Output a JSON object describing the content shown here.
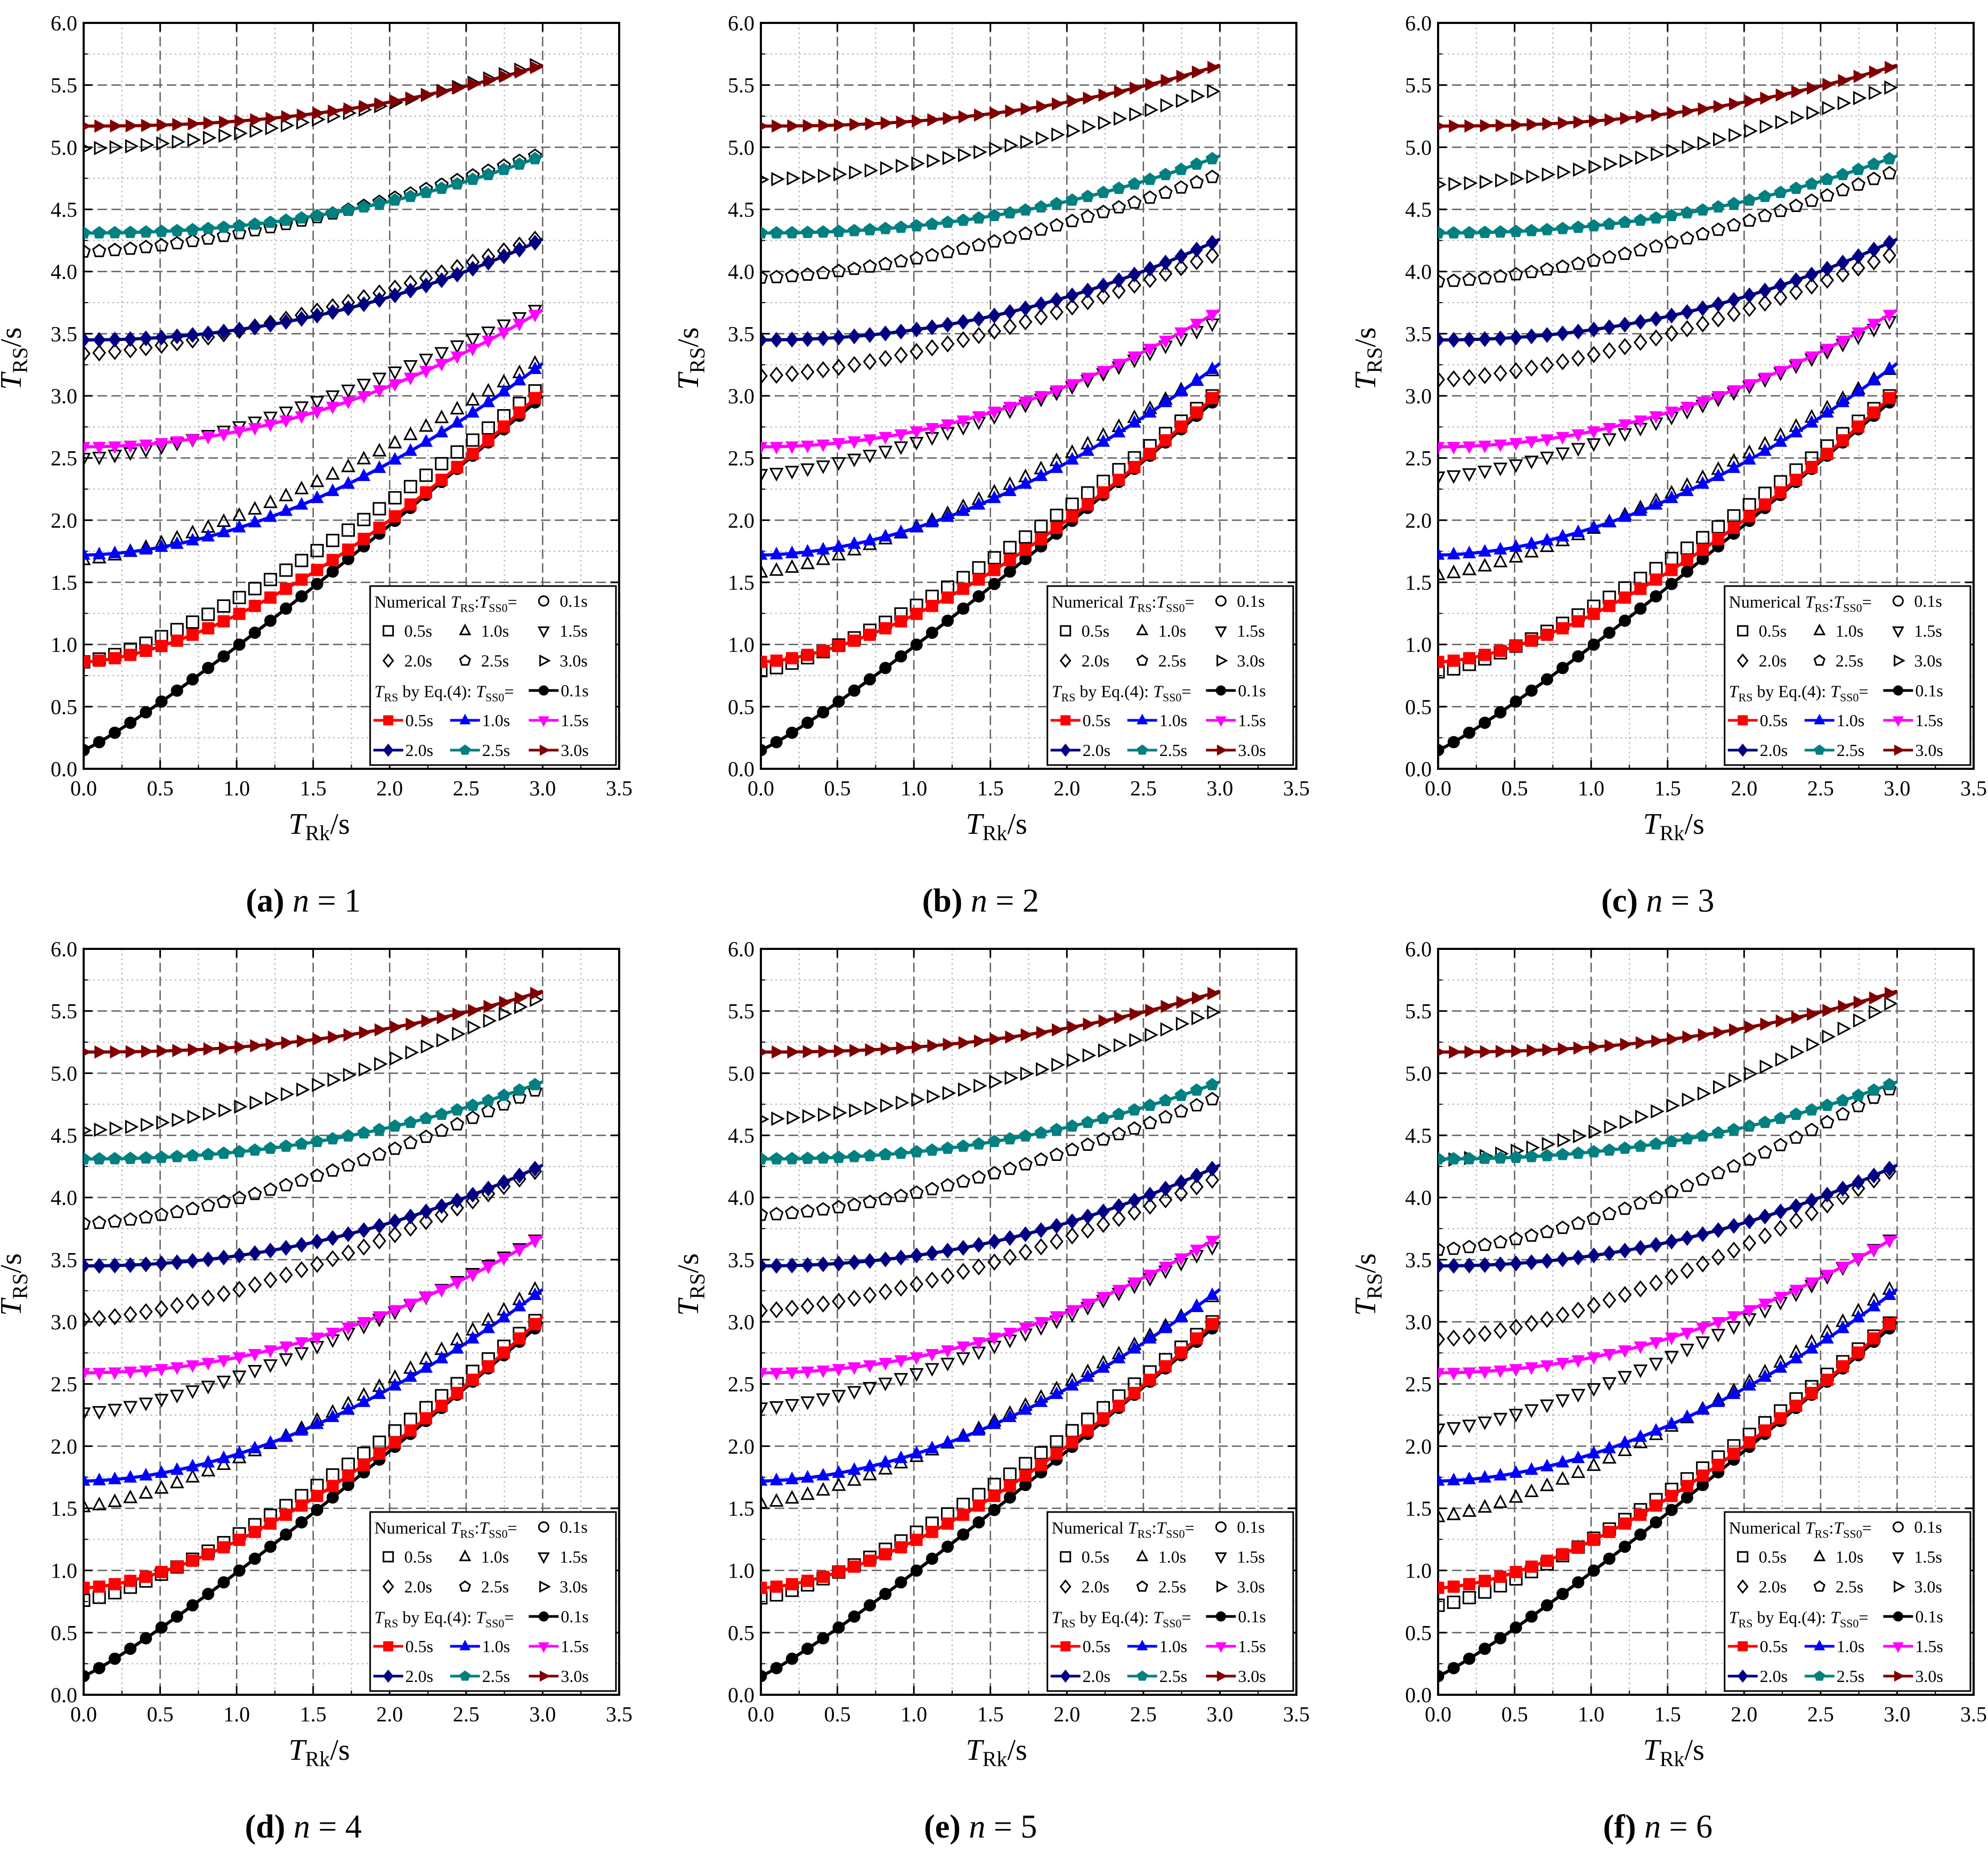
{
  "figure": {
    "x_axis_label": "T",
    "x_axis_label_sub": "Rk",
    "x_axis_label_unit": "/s",
    "y_axis_label": "T",
    "y_axis_label_sub": "RS",
    "y_axis_label_unit": "/s",
    "x_ticks": [
      "0.0",
      "0.5",
      "1.0",
      "1.5",
      "2.0",
      "2.5",
      "3.0",
      "3.5"
    ],
    "y_ticks": [
      "0.0",
      "0.5",
      "1.0",
      "1.5",
      "2.0",
      "2.5",
      "3.0",
      "3.5",
      "4.0",
      "4.5",
      "5.0",
      "5.5",
      "6.0"
    ],
    "legend": {
      "numerical_label": "Numerical ",
      "numerical_T": "T",
      "numerical_sub": "RS",
      "numerical_mid": ":",
      "numerical_T2": "T",
      "numerical_sub2": "SS0",
      "numerical_eq": "=",
      "eq4_T": "T",
      "eq4_sub": "RS",
      "eq4_text": " by Eq.(4): ",
      "eq4_T2": "T",
      "eq4_sub2": "SS0",
      "eq4_eq": "=",
      "entries": [
        "0.1s",
        "0.5s",
        "1.0s",
        "1.5s",
        "2.0s",
        "2.5s",
        "3.0s"
      ]
    },
    "colors": {
      "0.1s": "#000000",
      "0.5s": "#ff0000",
      "1.0s": "#0000ff",
      "1.5s": "#ff00ff",
      "2.0s": "#000080",
      "2.5s": "#008080",
      "3.0s": "#800000"
    },
    "markers": {
      "numerical": [
        "circle",
        "square",
        "triangle-up",
        "triangle-down",
        "diamond",
        "pentagon",
        "triangle-right"
      ],
      "equation": [
        "circle",
        "square",
        "triangle-up",
        "triangle-down",
        "diamond",
        "pentagon",
        "triangle-right"
      ]
    }
  },
  "chart_data": [
    {
      "type": "line",
      "caption_letter": "(a)",
      "caption_n": "n",
      "caption_eq": " = 1",
      "xlim": [
        0,
        3.5
      ],
      "ylim": [
        0,
        6
      ],
      "x_range": [
        0,
        2.95
      ],
      "equation_series": [
        {
          "name": "0.1s",
          "start": 0.15,
          "end": 3.0
        },
        {
          "name": "0.5s",
          "start": 0.86,
          "end": 3.04
        },
        {
          "name": "1.0s",
          "start": 1.72,
          "end": 3.26
        },
        {
          "name": "1.5s",
          "start": 2.59,
          "end": 3.69
        },
        {
          "name": "2.0s",
          "start": 3.45,
          "end": 4.26
        },
        {
          "name": "2.5s",
          "start": 4.31,
          "end": 4.93
        },
        {
          "name": "3.0s",
          "start": 5.17,
          "end": 5.66
        }
      ],
      "numerical_series": [
        {
          "name": "0.5s",
          "start": 0.86,
          "end": 3.04
        },
        {
          "name": "1.0s",
          "start": 1.68,
          "end": 3.26
        },
        {
          "name": "1.5s",
          "start": 2.5,
          "end": 3.69
        },
        {
          "name": "2.0s",
          "start": 3.34,
          "end": 4.26
        },
        {
          "name": "2.5s",
          "start": 4.16,
          "end": 4.93
        },
        {
          "name": "3.0s",
          "start": 4.99,
          "end": 5.66
        }
      ]
    },
    {
      "type": "line",
      "caption_letter": "(b)",
      "caption_n": "n",
      "caption_eq": " = 2",
      "xlim": [
        0,
        3.5
      ],
      "ylim": [
        0,
        6
      ],
      "x_range": [
        0,
        2.95
      ],
      "equation_series": [
        {
          "name": "0.1s",
          "start": 0.15,
          "end": 3.0
        },
        {
          "name": "0.5s",
          "start": 0.86,
          "end": 3.04
        },
        {
          "name": "1.0s",
          "start": 1.72,
          "end": 3.26
        },
        {
          "name": "1.5s",
          "start": 2.59,
          "end": 3.69
        },
        {
          "name": "2.0s",
          "start": 3.45,
          "end": 4.26
        },
        {
          "name": "2.5s",
          "start": 4.31,
          "end": 4.93
        },
        {
          "name": "3.0s",
          "start": 5.17,
          "end": 5.66
        }
      ],
      "numerical_series": [
        {
          "name": "0.5s",
          "start": 0.79,
          "end": 3.0
        },
        {
          "name": "1.0s",
          "start": 1.58,
          "end": 3.2
        },
        {
          "name": "1.5s",
          "start": 2.37,
          "end": 3.58
        },
        {
          "name": "2.0s",
          "start": 3.16,
          "end": 4.13
        },
        {
          "name": "2.5s",
          "start": 3.95,
          "end": 4.76
        },
        {
          "name": "3.0s",
          "start": 4.74,
          "end": 5.45
        }
      ]
    },
    {
      "type": "line",
      "caption_letter": "(c)",
      "caption_n": "n",
      "caption_eq": " = 3",
      "xlim": [
        0,
        3.5
      ],
      "ylim": [
        0,
        6
      ],
      "x_range": [
        0,
        2.95
      ],
      "equation_series": [
        {
          "name": "0.1s",
          "start": 0.15,
          "end": 3.0
        },
        {
          "name": "0.5s",
          "start": 0.86,
          "end": 3.04
        },
        {
          "name": "1.0s",
          "start": 1.72,
          "end": 3.26
        },
        {
          "name": "1.5s",
          "start": 2.59,
          "end": 3.69
        },
        {
          "name": "2.0s",
          "start": 3.45,
          "end": 4.26
        },
        {
          "name": "2.5s",
          "start": 4.31,
          "end": 4.93
        },
        {
          "name": "3.0s",
          "start": 5.17,
          "end": 5.66
        }
      ],
      "numerical_series": [
        {
          "name": "0.5s",
          "start": 0.78,
          "end": 3.0
        },
        {
          "name": "1.0s",
          "start": 1.56,
          "end": 3.21
        },
        {
          "name": "1.5s",
          "start": 2.35,
          "end": 3.6
        },
        {
          "name": "2.0s",
          "start": 3.13,
          "end": 4.13
        },
        {
          "name": "2.5s",
          "start": 3.92,
          "end": 4.79
        },
        {
          "name": "3.0s",
          "start": 4.7,
          "end": 5.48
        }
      ]
    },
    {
      "type": "line",
      "caption_letter": "(d)",
      "caption_n": "n",
      "caption_eq": " = 4",
      "xlim": [
        0,
        3.5
      ],
      "ylim": [
        0,
        6
      ],
      "x_range": [
        0,
        2.95
      ],
      "equation_series": [
        {
          "name": "0.1s",
          "start": 0.15,
          "end": 3.0
        },
        {
          "name": "0.5s",
          "start": 0.86,
          "end": 3.04
        },
        {
          "name": "1.0s",
          "start": 1.72,
          "end": 3.26
        },
        {
          "name": "1.5s",
          "start": 2.59,
          "end": 3.69
        },
        {
          "name": "2.0s",
          "start": 3.45,
          "end": 4.26
        },
        {
          "name": "2.5s",
          "start": 4.31,
          "end": 4.93
        },
        {
          "name": "3.0s",
          "start": 5.17,
          "end": 5.66
        }
      ],
      "numerical_series": [
        {
          "name": "0.5s",
          "start": 0.76,
          "end": 3.01
        },
        {
          "name": "1.0s",
          "start": 1.51,
          "end": 3.26
        },
        {
          "name": "1.5s",
          "start": 2.27,
          "end": 3.66
        },
        {
          "name": "2.0s",
          "start": 3.02,
          "end": 4.21
        },
        {
          "name": "2.5s",
          "start": 3.79,
          "end": 4.86
        },
        {
          "name": "3.0s",
          "start": 4.54,
          "end": 5.59
        }
      ]
    },
    {
      "type": "line",
      "caption_letter": "(e)",
      "caption_n": "n",
      "caption_eq": " = 5",
      "xlim": [
        0,
        3.5
      ],
      "ylim": [
        0,
        6
      ],
      "x_range": [
        0,
        2.95
      ],
      "equation_series": [
        {
          "name": "0.1s",
          "start": 0.15,
          "end": 3.0
        },
        {
          "name": "0.5s",
          "start": 0.86,
          "end": 3.04
        },
        {
          "name": "1.0s",
          "start": 1.72,
          "end": 3.26
        },
        {
          "name": "1.5s",
          "start": 2.59,
          "end": 3.69
        },
        {
          "name": "2.0s",
          "start": 3.45,
          "end": 4.26
        },
        {
          "name": "2.5s",
          "start": 4.31,
          "end": 4.93
        },
        {
          "name": "3.0s",
          "start": 5.17,
          "end": 5.66
        }
      ],
      "numerical_series": [
        {
          "name": "0.5s",
          "start": 0.78,
          "end": 3.0
        },
        {
          "name": "1.0s",
          "start": 1.54,
          "end": 3.2
        },
        {
          "name": "1.5s",
          "start": 2.31,
          "end": 3.6
        },
        {
          "name": "2.0s",
          "start": 3.09,
          "end": 4.14
        },
        {
          "name": "2.5s",
          "start": 3.86,
          "end": 4.79
        },
        {
          "name": "3.0s",
          "start": 4.63,
          "end": 5.49
        }
      ]
    },
    {
      "type": "line",
      "caption_letter": "(f)",
      "caption_n": "n",
      "caption_eq": " = 6",
      "xlim": [
        0,
        3.5
      ],
      "ylim": [
        0,
        6
      ],
      "x_range": [
        0,
        2.95
      ],
      "equation_series": [
        {
          "name": "0.1s",
          "start": 0.15,
          "end": 3.0
        },
        {
          "name": "0.5s",
          "start": 0.86,
          "end": 3.04
        },
        {
          "name": "1.0s",
          "start": 1.72,
          "end": 3.26
        },
        {
          "name": "1.5s",
          "start": 2.59,
          "end": 3.69
        },
        {
          "name": "2.0s",
          "start": 3.45,
          "end": 4.26
        },
        {
          "name": "2.5s",
          "start": 4.31,
          "end": 4.93
        },
        {
          "name": "3.0s",
          "start": 5.17,
          "end": 5.66
        }
      ],
      "numerical_series": [
        {
          "name": "0.5s",
          "start": 0.72,
          "end": 2.99
        },
        {
          "name": "1.0s",
          "start": 1.43,
          "end": 3.26
        },
        {
          "name": "1.5s",
          "start": 2.14,
          "end": 3.66
        },
        {
          "name": "2.0s",
          "start": 2.86,
          "end": 4.21
        },
        {
          "name": "2.5s",
          "start": 3.58,
          "end": 4.87
        },
        {
          "name": "3.0s",
          "start": 4.3,
          "end": 5.56
        }
      ]
    }
  ]
}
